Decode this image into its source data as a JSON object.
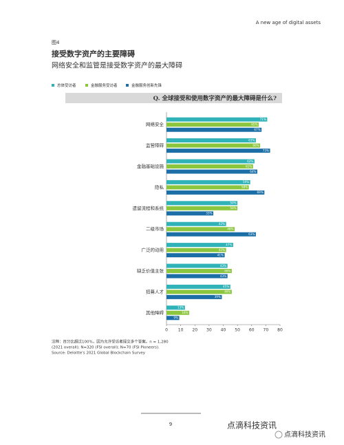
{
  "page": {
    "header": "A new age of digital assets",
    "figure_label": "图4",
    "notes": [
      "注释：百分比超过100%，因为允许受访者提交多个答案。n = 1,280",
      "(2021 overall); N=320 (FSI overall); N=70 (FSI Pioneers).",
      "Source: Deloitte's 2021 Global Blockchain Survey"
    ],
    "page_number": "9",
    "brand": "点滴科技资讯",
    "wechat": "点滴科技资讯"
  },
  "chart_data": {
    "type": "hbar",
    "title": "接受数字资产的主要障碍",
    "subtitle": "网络安全和监管是接受数字资产的最大障碍",
    "question": "Q. 全球接受和使用数字资产的最大障碍是什么?",
    "categories": [
      "网络安全",
      "监管障碍",
      "金融基础设施",
      "隐私",
      "遗留流程和系统",
      "二级市场",
      "广泛的动用",
      "缺乏价值主张",
      "招募人才",
      "其他障碍"
    ],
    "series": [
      {
        "name": "总体受访者",
        "color": "#2fb3b8",
        "values": [
          71,
          63,
          62,
          59,
          50,
          42,
          47,
          43,
          45,
          13
        ],
        "value_labels": [
          "71%",
          "63%",
          "62%",
          "59%",
          "50%",
          "42%",
          "47%",
          "43%",
          "45%",
          "13%"
        ]
      },
      {
        "name": "金融服务受访者",
        "color": "#8cc63e",
        "values": [
          65,
          66,
          61,
          58,
          50,
          48,
          42,
          46,
          46,
          16
        ],
        "value_labels": [
          "65%",
          "66%",
          "61%",
          "58%",
          "50%",
          "48%",
          "42%",
          "46%",
          "46%",
          "16%"
        ]
      },
      {
        "name": "金融服务创新先锋",
        "color": "#1b6fa6",
        "values": [
          67,
          73,
          64,
          69,
          33,
          63,
          41,
          43,
          39,
          9
        ],
        "value_labels": [
          "67%",
          "73%",
          "64%",
          "69%",
          "33%",
          "63%",
          "41%",
          "43%",
          "39%",
          "9%"
        ]
      }
    ],
    "xlim": [
      0,
      80
    ],
    "xticks": [
      0,
      10,
      20,
      30,
      40,
      50,
      60,
      70,
      80
    ],
    "grid": false
  }
}
